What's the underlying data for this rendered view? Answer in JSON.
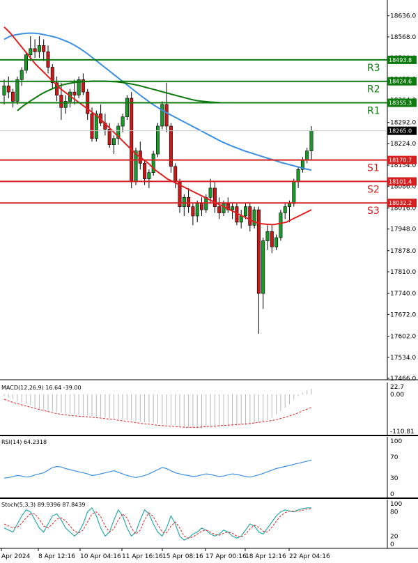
{
  "chart_data": {
    "type": "candlestick",
    "price_axis": {
      "ylim": [
        17466.0,
        18660.0
      ],
      "ticks": [
        18636.0,
        18568.0,
        18500.0,
        18432.0,
        18364.0,
        18292.0,
        18224.0,
        18154.0,
        18086.0,
        18016.0,
        17948.0,
        17878.0,
        17810.0,
        17740.0,
        17672.0,
        17602.0,
        17534.0,
        17466.0
      ],
      "tick_labels": [
        "18636.0",
        "18568.0",
        "18500.0",
        "18432.0",
        "18364.0",
        "18292.0",
        "18224.0",
        "18154.0",
        "18086.0",
        "18016.0",
        "17948.0",
        "17878.0",
        "17810.0",
        "17740.0",
        "17672.0",
        "17602.0",
        "17534.0",
        "17466.0"
      ],
      "current_price": 18265.0,
      "current_price_label": "18265.0"
    },
    "time_axis": {
      "labels": [
        "Apr 2024",
        "8 Apr 12:16",
        "10 Apr 04:16",
        "11 Apr 16:16",
        "15 Apr 08:16",
        "17 Apr 00:16",
        "18 Apr 12:16",
        "22 Apr 04:16"
      ]
    },
    "levels": [
      {
        "name": "R3",
        "value": 18493.8,
        "value_label": "18493.8",
        "color": "#0e7a0e"
      },
      {
        "name": "R2",
        "value": 18424.6,
        "value_label": "18424.6",
        "color": "#0e7a0e"
      },
      {
        "name": "R1",
        "value": 18355.3,
        "value_label": "18355.3",
        "color": "#0e7a0e"
      },
      {
        "name": "S1",
        "value": 18170.7,
        "value_label": "18170.7",
        "color": "#d42020"
      },
      {
        "name": "S2",
        "value": 18101.4,
        "value_label": "18101.4",
        "color": "#d42020"
      },
      {
        "name": "S3",
        "value": 18032.2,
        "value_label": "18032.2",
        "color": "#d42020"
      }
    ],
    "candles": [
      [
        18380,
        18430,
        18350,
        18410
      ],
      [
        18410,
        18440,
        18370,
        18390
      ],
      [
        18390,
        18400,
        18340,
        18360
      ],
      [
        18360,
        18440,
        18350,
        18430
      ],
      [
        18430,
        18470,
        18410,
        18460
      ],
      [
        18460,
        18520,
        18450,
        18510
      ],
      [
        18510,
        18570,
        18490,
        18530
      ],
      [
        18530,
        18560,
        18500,
        18520
      ],
      [
        18520,
        18570,
        18500,
        18540
      ],
      [
        18540,
        18560,
        18490,
        18520
      ],
      [
        18520,
        18540,
        18450,
        18470
      ],
      [
        18470,
        18480,
        18400,
        18420
      ],
      [
        18420,
        18440,
        18360,
        18380
      ],
      [
        18380,
        18420,
        18300,
        18340
      ],
      [
        18340,
        18380,
        18320,
        18360
      ],
      [
        18360,
        18400,
        18340,
        18390
      ],
      [
        18390,
        18430,
        18350,
        18380
      ],
      [
        18380,
        18440,
        18370,
        18430
      ],
      [
        18430,
        18450,
        18380,
        18390
      ],
      [
        18390,
        18400,
        18300,
        18320
      ],
      [
        18320,
        18340,
        18230,
        18240
      ],
      [
        18240,
        18330,
        18230,
        18320
      ],
      [
        18320,
        18350,
        18280,
        18290
      ],
      [
        18290,
        18320,
        18250,
        18270
      ],
      [
        18270,
        18290,
        18210,
        18220
      ],
      [
        18220,
        18250,
        18190,
        18240
      ],
      [
        18240,
        18290,
        18220,
        18280
      ],
      [
        18280,
        18320,
        18260,
        18310
      ],
      [
        18310,
        18380,
        18300,
        18370
      ],
      [
        18370,
        18390,
        18080,
        18100
      ],
      [
        18100,
        18210,
        18090,
        18200
      ],
      [
        18200,
        18230,
        18140,
        18160
      ],
      [
        18160,
        18170,
        18090,
        18110
      ],
      [
        18110,
        18140,
        18080,
        18130
      ],
      [
        18130,
        18200,
        18120,
        18190
      ],
      [
        18190,
        18290,
        18180,
        18280
      ],
      [
        18280,
        18360,
        18270,
        18350
      ],
      [
        18350,
        18420,
        18260,
        18280
      ],
      [
        18280,
        18290,
        18130,
        18150
      ],
      [
        18150,
        18160,
        18080,
        18100
      ],
      [
        18100,
        18110,
        18000,
        18020
      ],
      [
        18020,
        18060,
        17990,
        18050
      ],
      [
        18050,
        18080,
        18000,
        18020
      ],
      [
        18020,
        18030,
        17960,
        17990
      ],
      [
        17990,
        18040,
        17970,
        18030
      ],
      [
        18030,
        18050,
        17990,
        18010
      ],
      [
        18010,
        18060,
        18000,
        18050
      ],
      [
        18050,
        18110,
        18030,
        18080
      ],
      [
        18080,
        18100,
        18000,
        18020
      ],
      [
        18020,
        18050,
        17980,
        18000
      ],
      [
        18000,
        18040,
        17990,
        18030
      ],
      [
        18030,
        18050,
        18000,
        18010
      ],
      [
        18010,
        18030,
        17980,
        18020
      ],
      [
        18020,
        18030,
        17960,
        17970
      ],
      [
        17970,
        18010,
        17950,
        17990
      ],
      [
        17990,
        18030,
        17980,
        18020
      ],
      [
        18020,
        18030,
        17940,
        17960
      ],
      [
        17960,
        18020,
        17950,
        18010
      ],
      [
        18010,
        18020,
        17610,
        17740
      ],
      [
        17740,
        17920,
        17690,
        17910
      ],
      [
        17910,
        17960,
        17880,
        17940
      ],
      [
        17940,
        17960,
        17870,
        17890
      ],
      [
        17890,
        17930,
        17880,
        17920
      ],
      [
        17920,
        18010,
        17910,
        18000
      ],
      [
        18000,
        18030,
        17980,
        18020
      ],
      [
        18020,
        18040,
        17970,
        18030
      ],
      [
        18030,
        18110,
        18020,
        18100
      ],
      [
        18100,
        18150,
        18080,
        18140
      ],
      [
        18140,
        18180,
        18130,
        18170
      ],
      [
        18170,
        18210,
        18160,
        18200
      ],
      [
        18200,
        18280,
        18170,
        18265
      ]
    ],
    "series": [
      {
        "name": "",
        "color": "#3c8fe0",
        "values": [
          18560,
          18570,
          18575,
          18578,
          18580,
          18580,
          18578,
          18574,
          18570,
          18565,
          18558,
          18550,
          18540,
          18528,
          18515,
          18500,
          18485,
          18470,
          18455,
          18440,
          18425,
          18410,
          18395,
          18380,
          18366,
          18352,
          18340,
          18328,
          18318,
          18308,
          18298,
          18288,
          18278,
          18268,
          18258,
          18248,
          18238,
          18228,
          18220,
          18212,
          18205,
          18198,
          18192,
          18186,
          18180,
          18174,
          18168,
          18162,
          18157,
          18152,
          18147,
          18142,
          18138
        ]
      },
      {
        "name": "",
        "color": "#0e7a0e",
        "values": [
          18330,
          18345,
          18358,
          18370,
          18382,
          18392,
          18400,
          18408,
          18414,
          18418,
          18421,
          18423,
          18424,
          18425,
          18425,
          18425,
          18424,
          18423,
          18421,
          18418,
          18415,
          18411,
          18406,
          18401,
          18396,
          18391,
          18386,
          18381,
          18376,
          18371,
          18366,
          18362,
          18360,
          18358,
          18357,
          18356
        ]
      },
      {
        "name": "",
        "color": "#e02020",
        "values": [
          18600,
          18580,
          18555,
          18530,
          18505,
          18480,
          18460,
          18440,
          18420,
          18400,
          18385,
          18370,
          18355,
          18340,
          18325,
          18310,
          18290,
          18270,
          18250,
          18230,
          18210,
          18190,
          18175,
          18160,
          18140,
          18125,
          18110,
          18100,
          18090,
          18080,
          18070,
          18060,
          18050,
          18040,
          18030,
          18020,
          18010,
          18000,
          17990,
          17980,
          17970,
          17965,
          17963,
          17962,
          17966,
          17970,
          17980,
          17990,
          18000,
          18010
        ]
      }
    ],
    "macd": {
      "label": "MACD(12,26,9) 16.64 -39.00",
      "ticks": [
        "22.7",
        "0.00",
        "-110.81"
      ],
      "ylim": [
        -110.81,
        22.7
      ],
      "histogram": [
        -5,
        -10,
        -14,
        -20,
        -25,
        -28,
        -32,
        -38,
        -43,
        -46,
        -50,
        -52,
        -53,
        -55,
        -57,
        -58,
        -60,
        -62,
        -63,
        -64,
        -66,
        -67,
        -68,
        -70,
        -72,
        -73,
        -74,
        -76,
        -78,
        -79,
        -80,
        -82,
        -84,
        -85,
        -86,
        -87,
        -89,
        -91,
        -92,
        -93,
        -95,
        -97,
        -99,
        -100,
        -101,
        -102,
        -101,
        -100,
        -99,
        -98,
        -97,
        -96,
        -95,
        -94,
        -93,
        -92,
        -90,
        -88,
        -85,
        -82,
        -78,
        -70,
        -60,
        -50,
        -40,
        -30,
        -15,
        -5,
        5,
        12,
        16.64
      ],
      "signal": [
        -15,
        -20,
        -25,
        -29,
        -33,
        -37,
        -40,
        -44,
        -48,
        -51,
        -55,
        -58,
        -60,
        -62,
        -64,
        -65,
        -66,
        -67,
        -68,
        -70,
        -71,
        -73,
        -74,
        -76,
        -78,
        -80,
        -82,
        -84,
        -86,
        -88,
        -89,
        -91,
        -93,
        -94,
        -95,
        -96,
        -97,
        -98,
        -99,
        -99,
        -99,
        -98,
        -97,
        -96,
        -95,
        -94,
        -93,
        -92,
        -91,
        -90,
        -89,
        -88,
        -86,
        -84,
        -82,
        -80,
        -78,
        -75,
        -71,
        -67,
        -62,
        -57,
        -51,
        -45,
        -39
      ]
    },
    "rsi": {
      "label": "RSI(14) 64.2318",
      "ticks": [
        "100",
        "70",
        "30",
        "0"
      ],
      "ylim": [
        0,
        100
      ],
      "values": [
        30,
        31,
        33,
        35,
        34,
        32,
        33,
        36,
        38,
        40,
        45,
        50,
        52,
        51,
        48,
        46,
        44,
        42,
        40,
        38,
        35,
        36,
        38,
        40,
        42,
        44,
        41,
        38,
        35,
        33,
        31,
        33,
        35,
        38,
        42,
        46,
        50,
        48,
        44,
        40,
        38,
        36,
        35,
        33,
        34,
        36,
        38,
        37,
        35,
        33,
        34,
        36,
        38,
        37,
        35,
        33,
        32,
        34,
        36,
        39,
        42,
        45,
        48,
        50,
        52,
        54,
        56,
        58,
        60,
        62,
        64.2318
      ]
    },
    "stoch": {
      "label": "Stoch(5,3,3) 89.9396 87.8439",
      "ticks": [
        "100",
        "80",
        "20",
        "0"
      ],
      "ylim": [
        0,
        100
      ],
      "k": [
        40,
        35,
        30,
        50,
        70,
        85,
        80,
        60,
        40,
        30,
        50,
        70,
        75,
        60,
        40,
        30,
        20,
        30,
        50,
        80,
        90,
        70,
        40,
        20,
        30,
        60,
        85,
        70,
        40,
        20,
        30,
        60,
        85,
        75,
        50,
        30,
        20,
        40,
        70,
        50,
        20,
        10,
        15,
        25,
        30,
        40,
        35,
        25,
        20,
        25,
        35,
        30,
        20,
        15,
        20,
        35,
        50,
        45,
        30,
        25,
        40,
        55,
        70,
        80,
        85,
        82,
        80,
        85,
        88,
        90,
        89.9396
      ],
      "d": [
        50,
        45,
        40,
        42,
        52,
        65,
        75,
        75,
        62,
        45,
        40,
        50,
        62,
        65,
        58,
        45,
        32,
        28,
        35,
        55,
        75,
        80,
        68,
        45,
        30,
        38,
        60,
        75,
        65,
        40,
        25,
        35,
        60,
        78,
        68,
        48,
        30,
        28,
        45,
        55,
        40,
        20,
        15,
        18,
        25,
        32,
        35,
        30,
        24,
        22,
        27,
        30,
        27,
        20,
        17,
        25,
        38,
        47,
        42,
        32,
        30,
        42,
        57,
        70,
        78,
        82,
        82,
        82,
        84,
        87,
        87.8439
      ]
    }
  }
}
